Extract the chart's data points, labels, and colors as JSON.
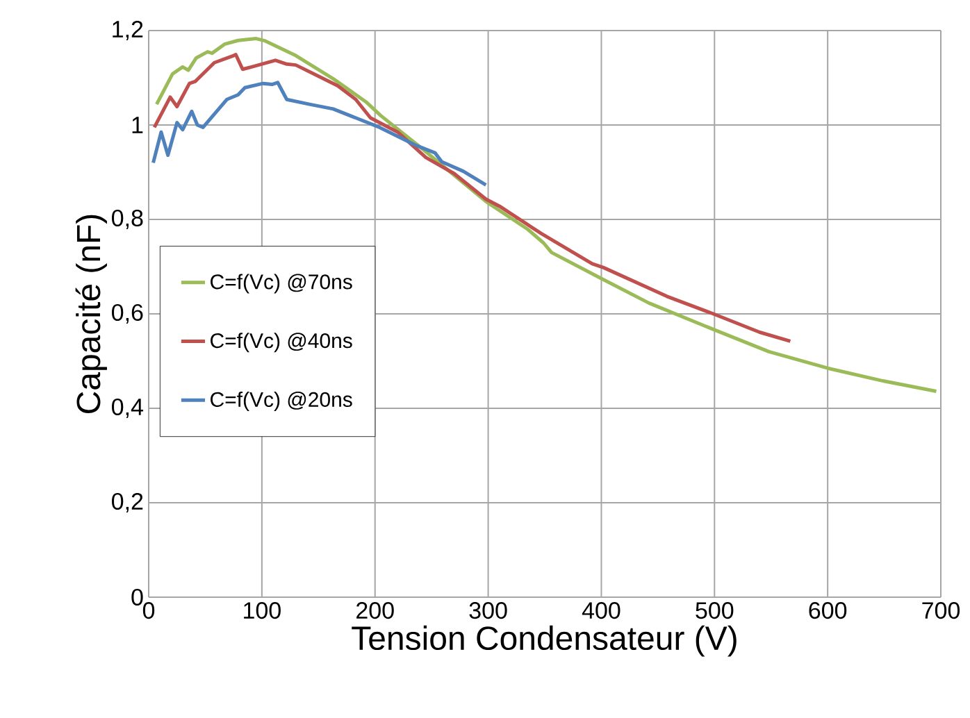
{
  "chart_data": {
    "type": "line",
    "xlabel": "Tension Condensateur (V)",
    "ylabel": "Capacité (nF)",
    "xlim": [
      0,
      700
    ],
    "xticks": [
      0,
      100,
      200,
      300,
      400,
      500,
      600,
      700
    ],
    "ylim": [
      0,
      1.2
    ],
    "yticks": [
      0,
      {
        "value": 0.2,
        "label": "0,2"
      },
      {
        "value": 0.4,
        "label": "0,4"
      },
      {
        "value": 0.6,
        "label": "0,6"
      },
      {
        "value": 0.8,
        "label": "0,8"
      },
      1,
      {
        "value": 1.2,
        "label": "1,2"
      }
    ],
    "grid": true,
    "legend": "left",
    "marker": "none",
    "line_style": "solid",
    "series": [
      {
        "name": "C=f(Vc) @70ns",
        "color": "#9bbb59",
        "x": [
          7,
          21,
          30,
          35,
          42,
          52,
          56,
          67,
          79,
          95,
          103,
          130,
          163,
          192,
          205,
          241,
          298,
          335,
          349,
          356,
          399,
          442,
          499,
          548,
          600,
          647,
          696
        ],
        "values": [
          1.044,
          1.108,
          1.123,
          1.116,
          1.142,
          1.155,
          1.152,
          1.171,
          1.179,
          1.183,
          1.178,
          1.147,
          1.098,
          1.049,
          1.02,
          0.951,
          0.838,
          0.779,
          0.75,
          0.73,
          0.676,
          0.623,
          0.567,
          0.52,
          0.485,
          0.459,
          0.436
        ]
      },
      {
        "name": "C=f(Vc) @40ns",
        "color": "#c0504d",
        "x": [
          5,
          19,
          25,
          36,
          41,
          58,
          75,
          77,
          83,
          91,
          112,
          122,
          130,
          146,
          167,
          183,
          196,
          220,
          245,
          270,
          298,
          310,
          347,
          392,
          402,
          458,
          499,
          540,
          567
        ],
        "values": [
          0.995,
          1.059,
          1.039,
          1.088,
          1.092,
          1.132,
          1.147,
          1.149,
          1.118,
          1.123,
          1.137,
          1.129,
          1.127,
          1.108,
          1.083,
          1.054,
          1.015,
          0.985,
          0.931,
          0.897,
          0.843,
          0.828,
          0.77,
          0.706,
          0.698,
          0.637,
          0.6,
          0.561,
          0.542
        ]
      },
      {
        "name": "C=f(Vc) @20ns",
        "color": "#4f81bd",
        "x": [
          4,
          11,
          17,
          25,
          30,
          38,
          43,
          48,
          69,
          79,
          85,
          101,
          109,
          114,
          122,
          142,
          163,
          183,
          204,
          237,
          253,
          259,
          278,
          298
        ],
        "values": [
          0.92,
          0.985,
          0.936,
          1.005,
          0.99,
          1.029,
          1.0,
          0.995,
          1.054,
          1.064,
          1.079,
          1.088,
          1.086,
          1.09,
          1.054,
          1.044,
          1.034,
          1.015,
          0.995,
          0.956,
          0.941,
          0.922,
          0.902,
          0.873
        ]
      }
    ]
  }
}
